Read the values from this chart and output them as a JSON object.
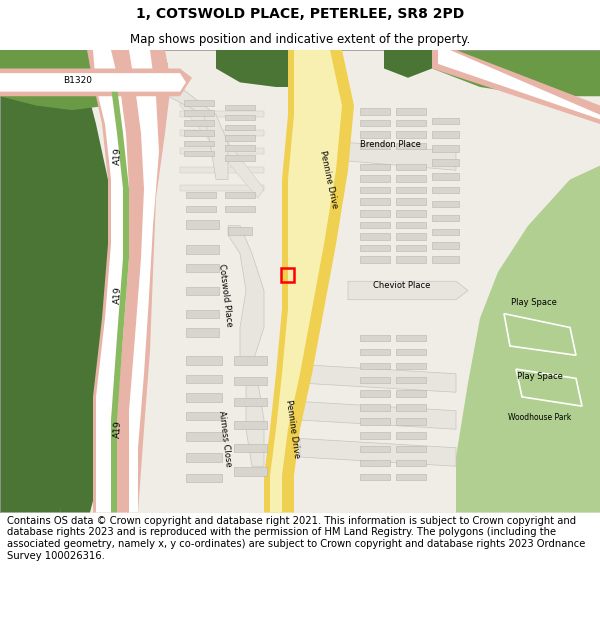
{
  "title": "1, COTSWOLD PLACE, PETERLEE, SR8 2PD",
  "subtitle": "Map shows position and indicative extent of the property.",
  "footer": "Contains OS data © Crown copyright and database right 2021. This information is subject to Crown copyright and database rights 2023 and is reproduced with the permission of HM Land Registry. The polygons (including the associated geometry, namely x, y co-ordinates) are subject to Crown copyright and database rights 2023 Ordnance Survey 100026316.",
  "title_fontsize": 10,
  "subtitle_fontsize": 8.5,
  "footer_fontsize": 7.2,
  "map_bg": "#f0ede6",
  "dark_green": "#4a7535",
  "med_green": "#6a9a45",
  "light_green": "#acd18a",
  "park_green": "#b0cf90",
  "road_pink": "#e8b4a8",
  "road_white": "#ffffff",
  "road_green_res": "#8aba60",
  "road_yellow": "#f0d050",
  "road_yellow_inner": "#f8f0b0",
  "building_fill": "#d8d4ce",
  "building_edge": "#b8b4ae",
  "road_grey_fill": "#e8e4de",
  "road_grey_edge": "#c8c4be"
}
